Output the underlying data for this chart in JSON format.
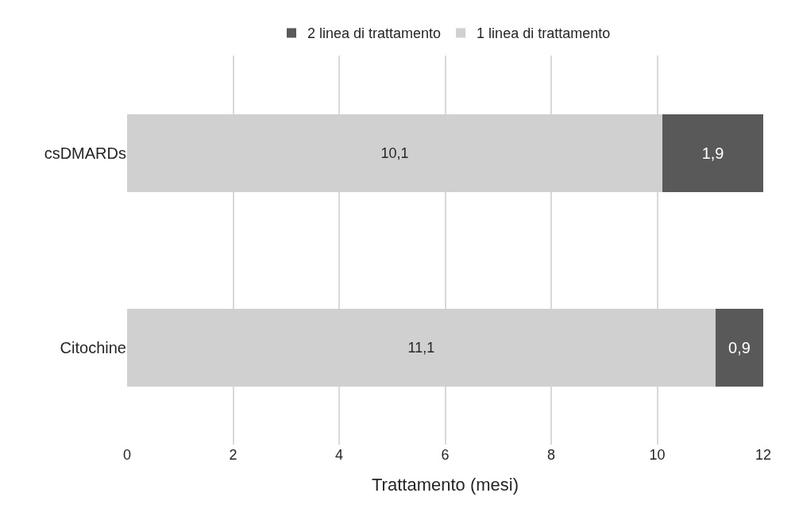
{
  "chart_data": {
    "type": "bar",
    "orientation": "horizontal",
    "stacked": true,
    "categories": [
      "csDMARDs",
      "Citochine"
    ],
    "series": [
      {
        "name": "1 linea di trattamento",
        "color": "#d0d0d0",
        "values": [
          10.1,
          11.1
        ],
        "value_labels": [
          "10,1",
          "11,1"
        ]
      },
      {
        "name": "2 linea di trattamento",
        "color": "#595959",
        "values": [
          1.9,
          0.9
        ],
        "value_labels": [
          "1,9",
          "0,9"
        ]
      }
    ],
    "xlabel": "Trattamento (mesi)",
    "xlim": [
      0,
      12
    ],
    "xticks": [
      0,
      2,
      4,
      6,
      8,
      10,
      12
    ],
    "grid": "x",
    "legend": "top"
  }
}
